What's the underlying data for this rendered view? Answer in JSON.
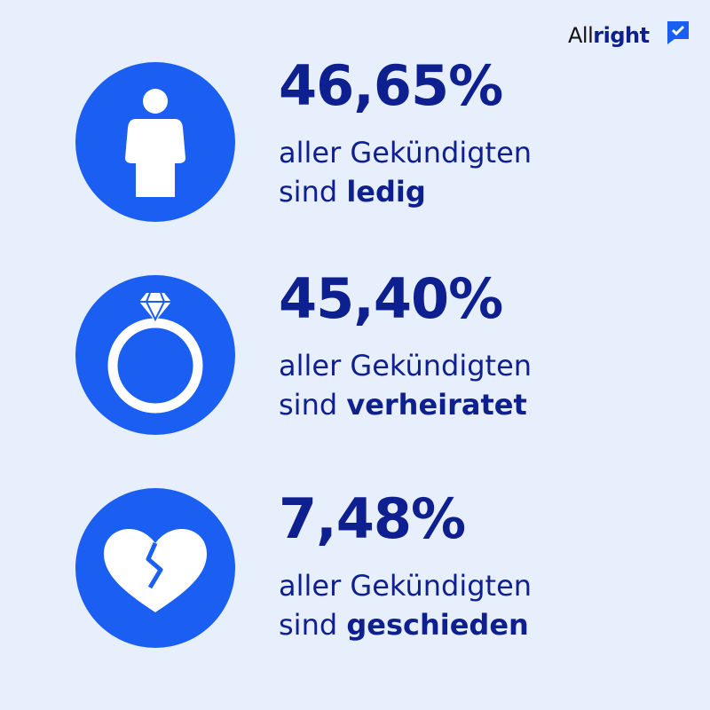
{
  "logo": {
    "prefix": "All",
    "bold": "right"
  },
  "items": [
    {
      "percent": "46,65%",
      "line1": "aller Gekündigten",
      "line2_prefix": "sind",
      "line2_bold": "ledig"
    },
    {
      "percent": "45,40%",
      "line1": "aller Gekündigten",
      "line2_prefix": "sind",
      "line2_bold": "verheiratet"
    },
    {
      "percent": "7,48%",
      "line1": "aller Gekündigten",
      "line2_prefix": "sind",
      "line2_bold": "geschieden"
    }
  ]
}
